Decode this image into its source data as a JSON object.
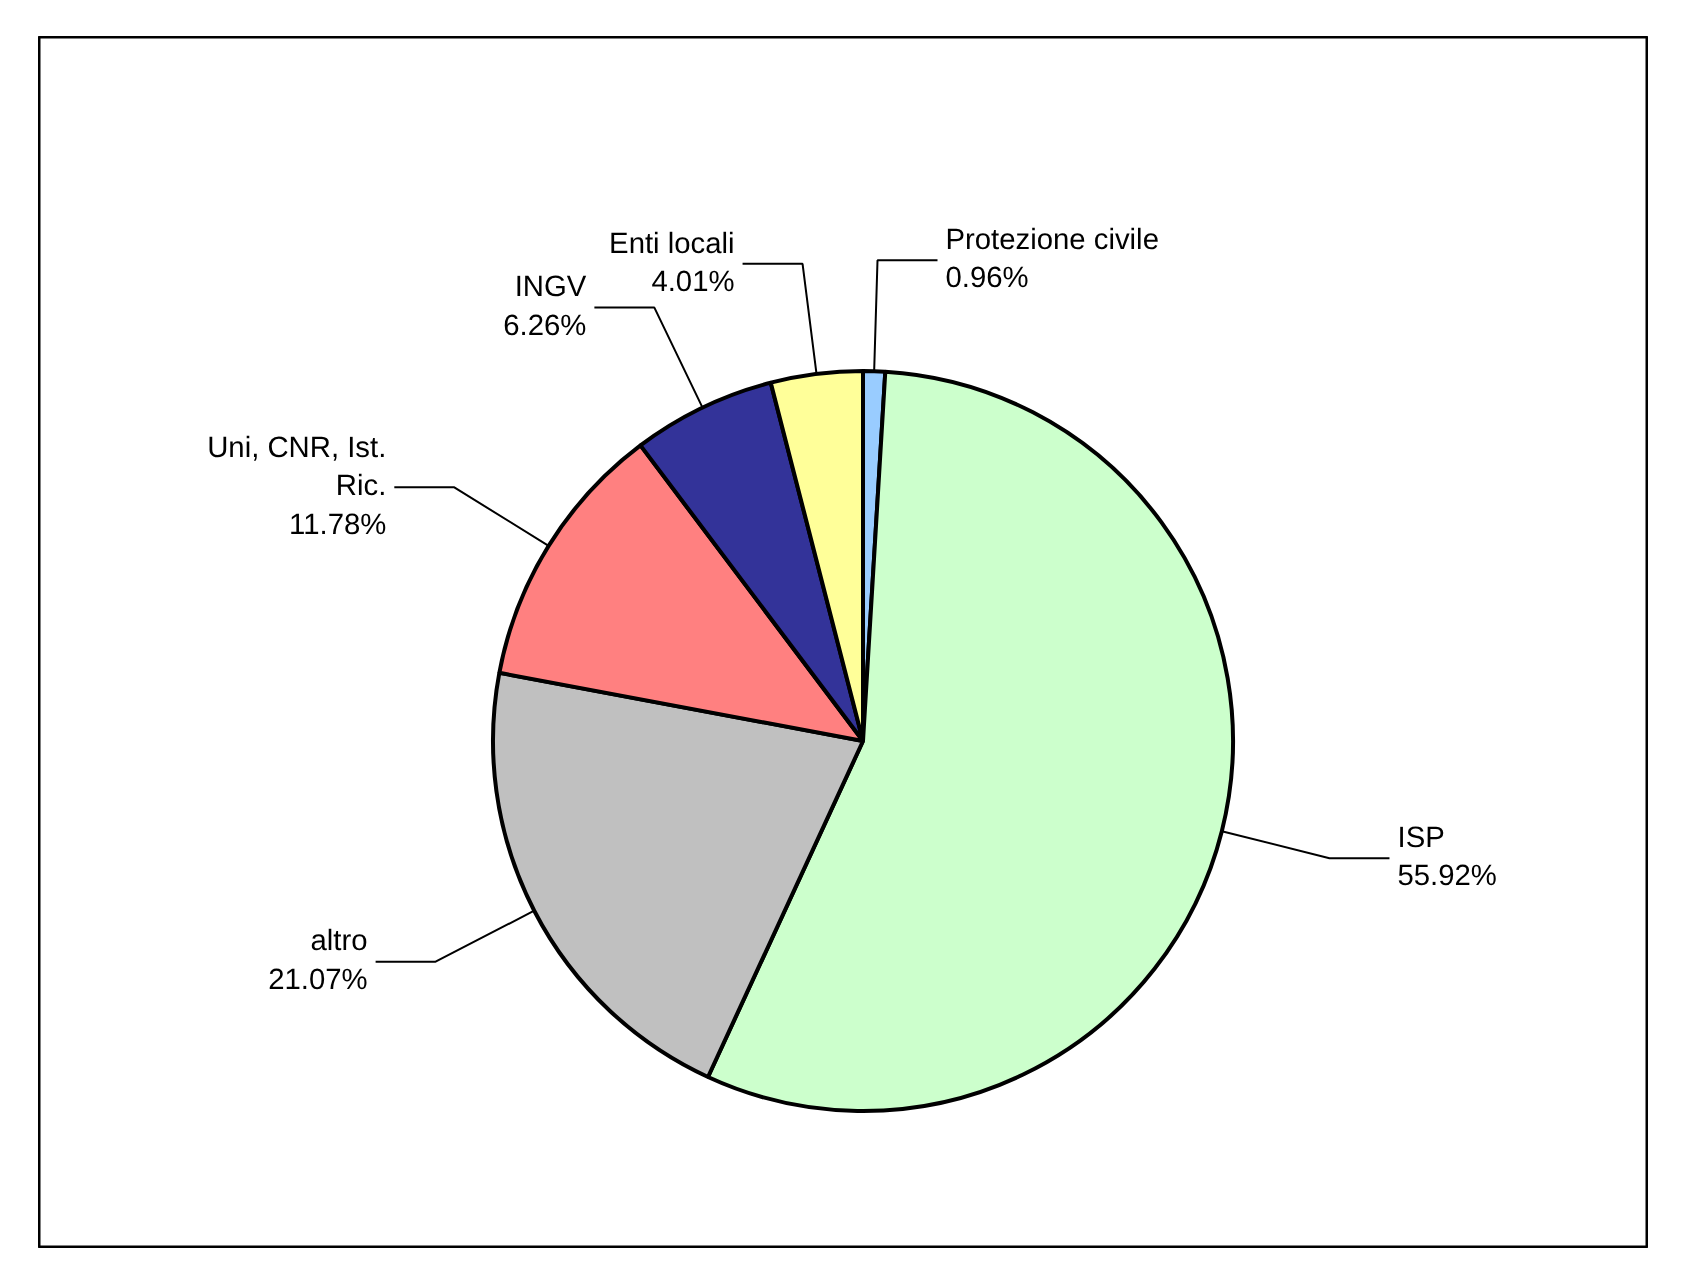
{
  "chart_data": {
    "type": "pie",
    "categories": [
      "Protezione civile",
      "ISP",
      "altro",
      "Uni, CNR, Ist. Ric.",
      "INGV",
      "Enti locali"
    ],
    "values": [
      0.96,
      55.92,
      21.07,
      11.78,
      6.26,
      4.01
    ],
    "value_labels": [
      "0.96%",
      "55.92%",
      "21.07%",
      "11.78%",
      "6.26%",
      "4.01%"
    ],
    "colors": [
      "#99ccff",
      "#ccffcc",
      "#c0c0c0",
      "#ff8080",
      "#333399",
      "#ffff99"
    ]
  }
}
